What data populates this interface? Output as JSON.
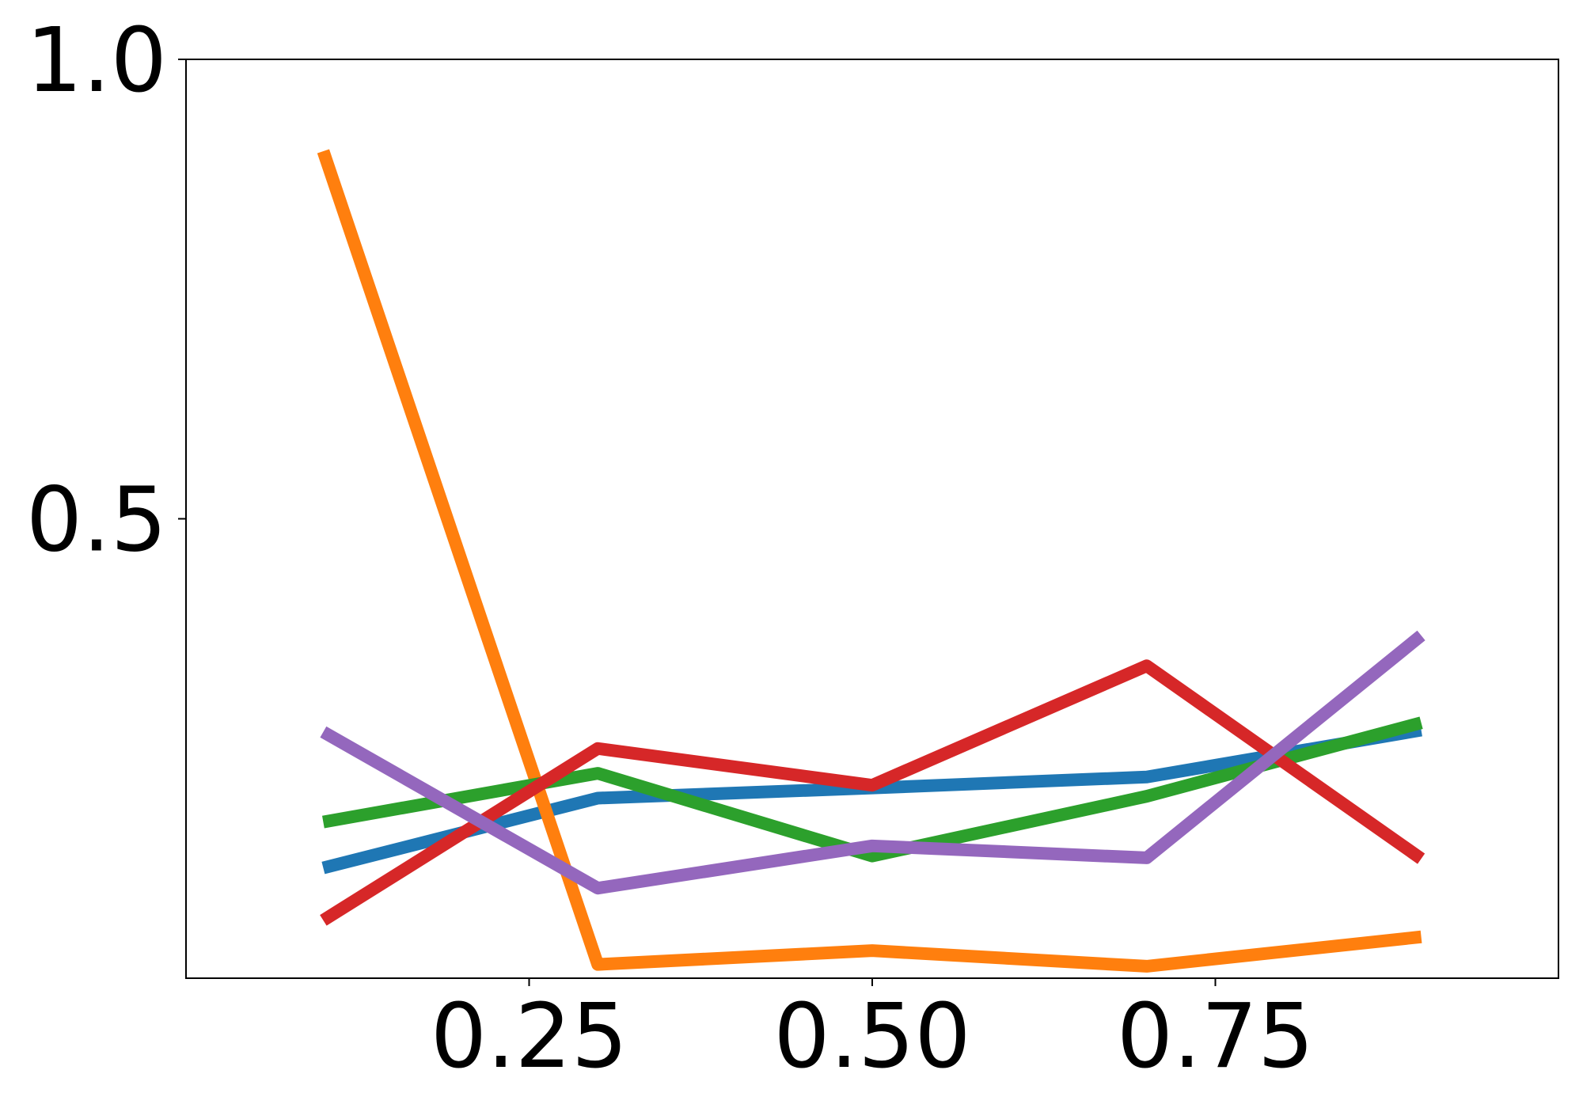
{
  "chart_data": {
    "type": "line",
    "x": [
      0.1,
      0.3,
      0.5,
      0.7,
      0.9
    ],
    "series": [
      {
        "color": "#1f77b4",
        "values": [
          0.12,
          0.196,
          0.207,
          0.219,
          0.27
        ]
      },
      {
        "color": "#ff7f0e",
        "values": [
          0.9,
          0.015,
          0.03,
          0.013,
          0.045
        ]
      },
      {
        "color": "#2ca02c",
        "values": [
          0.17,
          0.223,
          0.133,
          0.198,
          0.278
        ]
      },
      {
        "color": "#d62728",
        "values": [
          0.063,
          0.25,
          0.21,
          0.34,
          0.13
        ]
      },
      {
        "color": "#9467bd",
        "values": [
          0.268,
          0.098,
          0.144,
          0.131,
          0.373
        ]
      }
    ],
    "xlim": [
      0,
      1
    ],
    "ylim": [
      0,
      1
    ],
    "xticks": [
      0.25,
      {
        "value": 0.5,
        "label": "0.50"
      },
      0.75
    ],
    "yticks": [
      0.5,
      {
        "value": 1,
        "label": "1.0"
      }
    ],
    "grid": false
  }
}
